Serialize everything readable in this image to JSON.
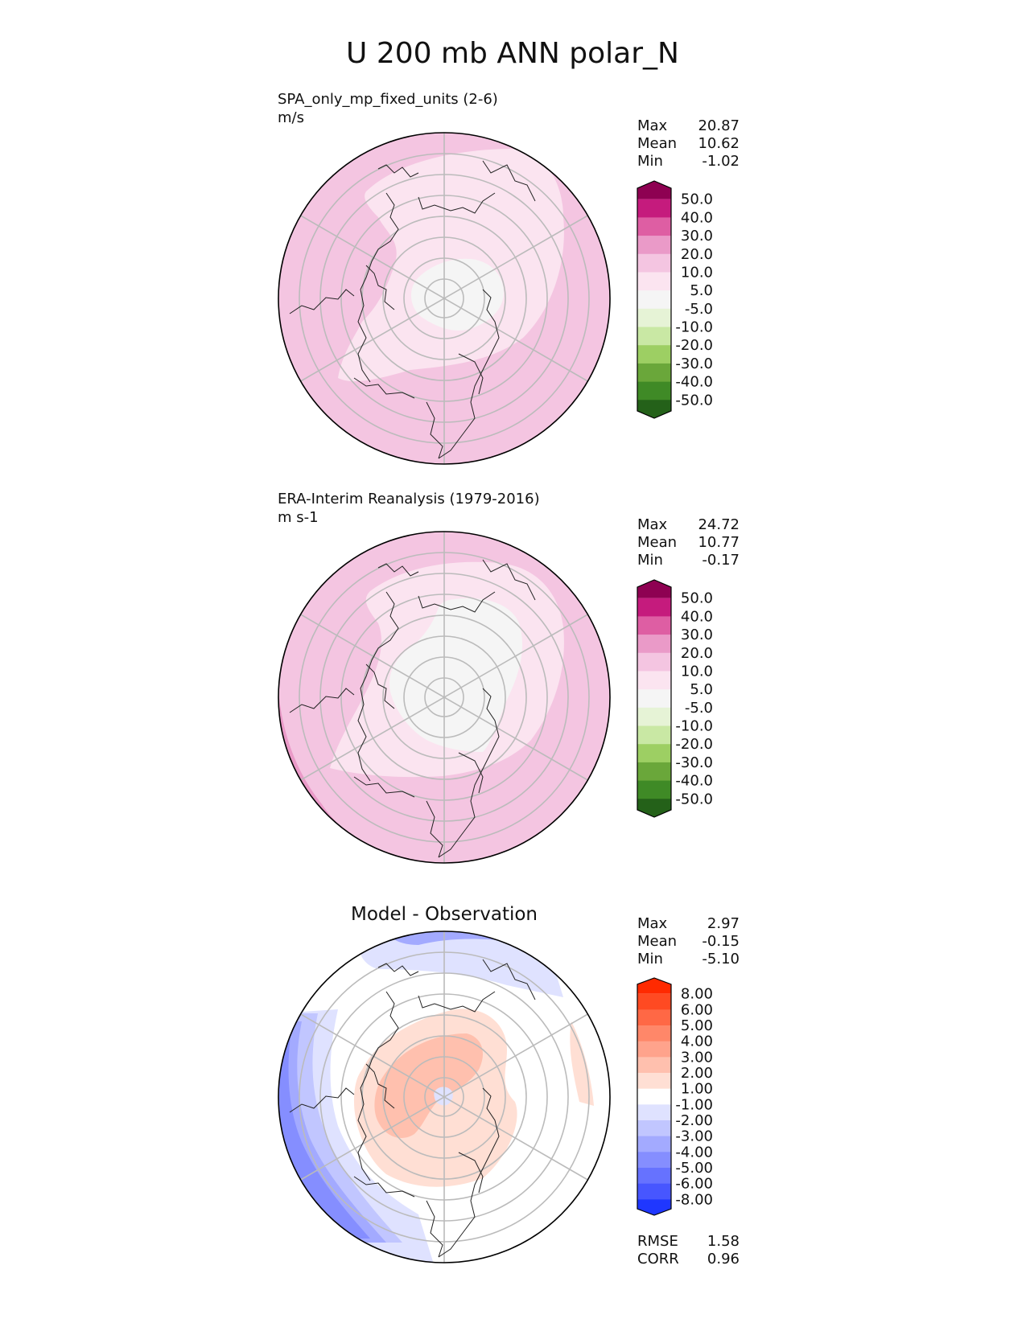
{
  "title": "U 200 mb ANN polar_N",
  "chart_data": [
    {
      "type": "heatmap",
      "projection": "north-polar-stereographic",
      "name": "test",
      "title": "",
      "subtitle": "SPA_only_mp_fixed_units (2-6)",
      "units": "m/s",
      "stats": [
        {
          "label": "Max",
          "value": "20.87"
        },
        {
          "label": "Mean",
          "value": "10.62"
        },
        {
          "label": "Min",
          "value": "-1.02"
        }
      ],
      "colorbar": {
        "labels": [
          "50.0",
          "40.0",
          "30.0",
          "20.0",
          "10.0",
          "5.0",
          "-5.0",
          "-10.0",
          "-20.0",
          "-30.0",
          "-40.0",
          "-50.0"
        ],
        "colors": [
          "#8e0152",
          "#c51b7d",
          "#de5ea3",
          "#ea9ac8",
          "#f4c5e1",
          "#fbe4f0",
          "#f5f5f5",
          "#e6f3d6",
          "#c9e8a4",
          "#9dcf63",
          "#6aa73a",
          "#3f8a26",
          "#246119"
        ]
      },
      "fields": {
        "background": "#f4c5e1",
        "zones": [
          {
            "level": "10 to 20",
            "color": "#f4c5e1"
          },
          {
            "level": "5 to 10",
            "color": "#fbe4f0"
          },
          {
            "level": "-5 to 5",
            "color": "#f5f5f5"
          }
        ]
      }
    },
    {
      "type": "heatmap",
      "projection": "north-polar-stereographic",
      "name": "reference",
      "title": "",
      "subtitle": "ERA-Interim Reanalysis (1979-2016)",
      "units": "m s-1",
      "stats": [
        {
          "label": "Max",
          "value": "24.72"
        },
        {
          "label": "Mean",
          "value": "10.77"
        },
        {
          "label": "Min",
          "value": "-0.17"
        }
      ],
      "colorbar": {
        "labels": [
          "50.0",
          "40.0",
          "30.0",
          "20.0",
          "10.0",
          "5.0",
          "-5.0",
          "-10.0",
          "-20.0",
          "-30.0",
          "-40.0",
          "-50.0"
        ],
        "colors": [
          "#8e0152",
          "#c51b7d",
          "#de5ea3",
          "#ea9ac8",
          "#f4c5e1",
          "#fbe4f0",
          "#f5f5f5",
          "#e6f3d6",
          "#c9e8a4",
          "#9dcf63",
          "#6aa73a",
          "#3f8a26",
          "#246119"
        ]
      },
      "fields": {
        "background": "#f4c5e1",
        "zones": [
          {
            "level": "20 to 30",
            "color": "#ea9ac8"
          },
          {
            "level": "10 to 20",
            "color": "#f4c5e1"
          },
          {
            "level": "5 to 10",
            "color": "#fbe4f0"
          },
          {
            "level": "-5 to 5",
            "color": "#f5f5f5"
          }
        ]
      }
    },
    {
      "type": "heatmap",
      "projection": "north-polar-stereographic",
      "name": "difference",
      "title": "Model - Observation",
      "subtitle": "",
      "units": "",
      "stats": [
        {
          "label": "Max",
          "value": "2.97"
        },
        {
          "label": "Mean",
          "value": "-0.15"
        },
        {
          "label": "Min",
          "value": "-5.10"
        }
      ],
      "metrics": [
        {
          "label": "RMSE",
          "value": "1.58"
        },
        {
          "label": "CORR",
          "value": "0.96"
        }
      ],
      "colorbar": {
        "labels": [
          "8.00",
          "6.00",
          "5.00",
          "4.00",
          "3.00",
          "2.00",
          "1.00",
          "-1.00",
          "-2.00",
          "-3.00",
          "-4.00",
          "-5.00",
          "-6.00",
          "-8.00"
        ],
        "colors": [
          "#ff2a00",
          "#ff4a22",
          "#ff6845",
          "#ff8769",
          "#ffa38c",
          "#ffc0ae",
          "#ffdfd4",
          "#ffffff",
          "#dfe2ff",
          "#c1c6ff",
          "#a3aaff",
          "#858eff",
          "#6672ff",
          "#4756ff",
          "#1f37ff"
        ]
      },
      "fields": {
        "background": "#ffffff",
        "zones": [
          {
            "level": "-1 to -2",
            "color": "#dfe2ff"
          },
          {
            "level": "-2 to -3",
            "color": "#c1c6ff"
          },
          {
            "level": "-3 to -4",
            "color": "#a3aaff"
          },
          {
            "level": "-4 to -5",
            "color": "#858eff"
          },
          {
            "level": "1 to 2",
            "color": "#ffdfd4"
          },
          {
            "level": "2 to 3",
            "color": "#ffc0ae"
          },
          {
            "level": "-1 to -2 (pole)",
            "color": "#dfe2ff"
          }
        ]
      }
    }
  ]
}
